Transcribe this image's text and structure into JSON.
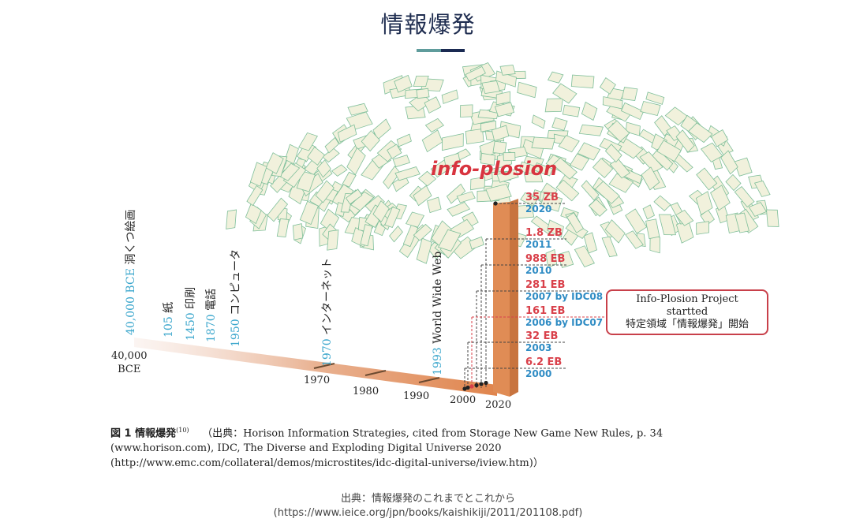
{
  "header": {
    "title": "情報爆発",
    "accent_colors": [
      "#5f9c9c",
      "#1a2a52"
    ]
  },
  "diagram": {
    "logo_text": "info-plosion",
    "vertical_events": [
      {
        "year": "40,000 BCE",
        "label": "洞くつ絵画"
      },
      {
        "year": "105",
        "label": "紙"
      },
      {
        "year": "1450",
        "label": "印刷"
      },
      {
        "year": "1870",
        "label": "電話"
      },
      {
        "year": "1950",
        "label": "コンピュータ"
      },
      {
        "year": "1970",
        "label": "インターネット"
      },
      {
        "year": "1993",
        "label": "World Wide Web"
      }
    ],
    "axis_labels": {
      "start_line1": "40,000",
      "start_line2": "BCE",
      "t1970": "1970",
      "t1980": "1980",
      "t1990": "1990",
      "t2000": "2000",
      "t2020": "2020"
    },
    "data_points": [
      {
        "value": "35 ZB",
        "year": "2020"
      },
      {
        "value": "1.8 ZB",
        "year": "2011"
      },
      {
        "value": "988 EB",
        "year": "2010"
      },
      {
        "value": "281 EB",
        "year": "2007 by IDC08"
      },
      {
        "value": "161 EB",
        "year": "2006 by IDC07"
      },
      {
        "value": "32 EB",
        "year": "2003"
      },
      {
        "value": "6.2 EB",
        "year": "2000"
      }
    ],
    "callout": {
      "line1": "Info-Plosion  Project",
      "line2": "startted",
      "line3": "特定領域「情報爆発」開始"
    },
    "colors": {
      "value": "#d9404a",
      "year": "#2f8cc4",
      "column": "#e08c55"
    }
  },
  "caption": {
    "fig_label": "図 1  情報爆発",
    "ref": "(10)",
    "text": "（出典：Horison Information Strategies, cited from Storage New Game New Rules, p. 34 (www.horison.com), IDC, The Diverse and Exploding Digital Universe 2020 (http://www.emc.com/collateral/demos/microstites/idc-digital-universe/iview.htm)）"
  },
  "source": {
    "line1": "出典：情報爆発のこれまでとこれから",
    "line2": "(https://www.ieice.org/jpn/books/kaishikiji/2011/201108.pdf)"
  }
}
